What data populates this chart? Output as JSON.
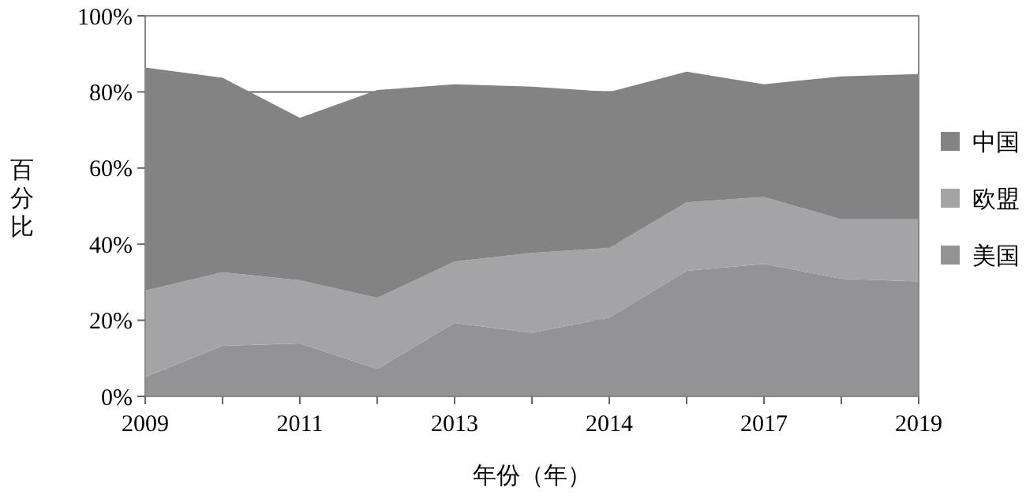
{
  "chart_data": {
    "type": "area",
    "stacked": true,
    "xlabel": "年份（年）",
    "ylabel": "百分比",
    "categories": [
      "2009",
      null,
      "2011",
      null,
      "2013",
      null,
      "2014",
      null,
      "2017",
      null,
      "2019"
    ],
    "series": [
      {
        "name": "美国",
        "color": "#939395",
        "values": [
          5.1,
          13.3,
          13.9,
          7.2,
          19.3,
          16.7,
          20.7,
          33,
          34.8,
          30.9,
          30.2
        ]
      },
      {
        "name": "欧盟",
        "color": "#a4a4a6",
        "values": [
          22.7,
          19.3,
          16.6,
          18.7,
          16.1,
          21,
          18.3,
          18,
          17.6,
          15.6,
          16.3
        ]
      },
      {
        "name": "中国",
        "color": "#838383",
        "values": [
          58.6,
          51.1,
          42.7,
          54.6,
          46.6,
          43.7,
          41,
          34.3,
          29.6,
          37.6,
          38.2
        ]
      }
    ],
    "ylim": [
      0,
      100
    ],
    "yticks": [
      {
        "value": 0,
        "label": "0%"
      },
      {
        "value": 20,
        "label": "20%"
      },
      {
        "value": 40,
        "label": "40%"
      },
      {
        "value": 60,
        "label": "60%"
      },
      {
        "value": 80,
        "label": "80%"
      },
      {
        "value": 100,
        "label": "100%"
      }
    ],
    "grid": "y",
    "legend": "right"
  }
}
